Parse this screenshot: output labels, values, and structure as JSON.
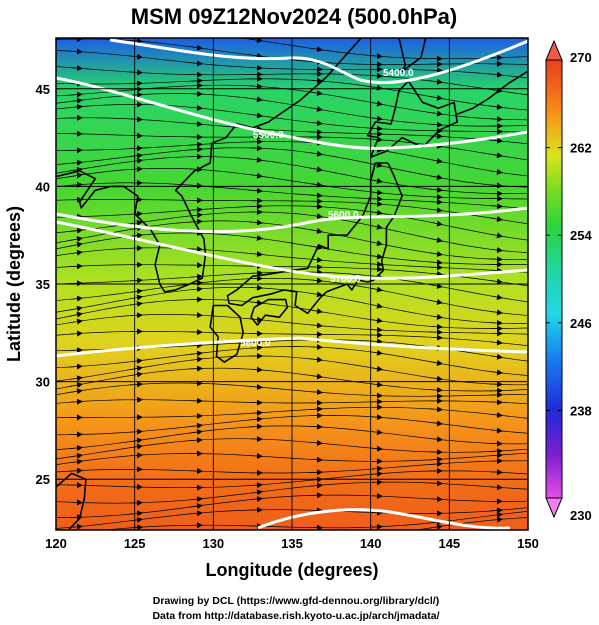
{
  "chart": {
    "title": "MSM 09Z12Nov2024 (500.0hPa)",
    "xlabel": "Longitude (degrees)",
    "ylabel": "Latitude  (degrees)",
    "credit_line1": "Drawing by DCL (https://www.gfd-dennou.org/library/dcl/)",
    "credit_line2": "Data from http://database.rish.kyoto-u.ac.jp/arch/jmadata/"
  },
  "chart_data": {
    "type": "heatmap",
    "title": "MSM 09Z12Nov2024 (500.0hPa)",
    "xlabel": "Longitude (degrees)",
    "ylabel": "Latitude  (degrees)",
    "xlim": [
      120,
      150
    ],
    "ylim": [
      22.4,
      47.6
    ],
    "x_ticks": [
      120,
      125,
      130,
      135,
      140,
      145,
      150
    ],
    "y_ticks": [
      25,
      30,
      35,
      40,
      45
    ],
    "colorbar": {
      "min": 230,
      "max": 270,
      "ticks": [
        230,
        238,
        246,
        254,
        262,
        270
      ],
      "extend": "both"
    },
    "temperature_profile": [
      {
        "lat": 47.6,
        "value": 241
      },
      {
        "lat": 45.0,
        "value": 253
      },
      {
        "lat": 40.0,
        "value": 256
      },
      {
        "lat": 35.0,
        "value": 260
      },
      {
        "lat": 32.0,
        "value": 262
      },
      {
        "lat": 28.0,
        "value": 265
      },
      {
        "lat": 25.0,
        "value": 267
      },
      {
        "lat": 22.4,
        "value": 268
      }
    ],
    "contours": [
      {
        "label": "5400.0"
      },
      {
        "label": "5500.0"
      },
      {
        "label": "5600.0"
      },
      {
        "label": "5700.0"
      },
      {
        "label": "5800.0"
      }
    ],
    "overlays": [
      "streamlines",
      "coastlines",
      "grid"
    ],
    "grid": true
  },
  "colors": {
    "frame": "#000000",
    "contour": "#ffffff",
    "streamline": "#000000"
  }
}
